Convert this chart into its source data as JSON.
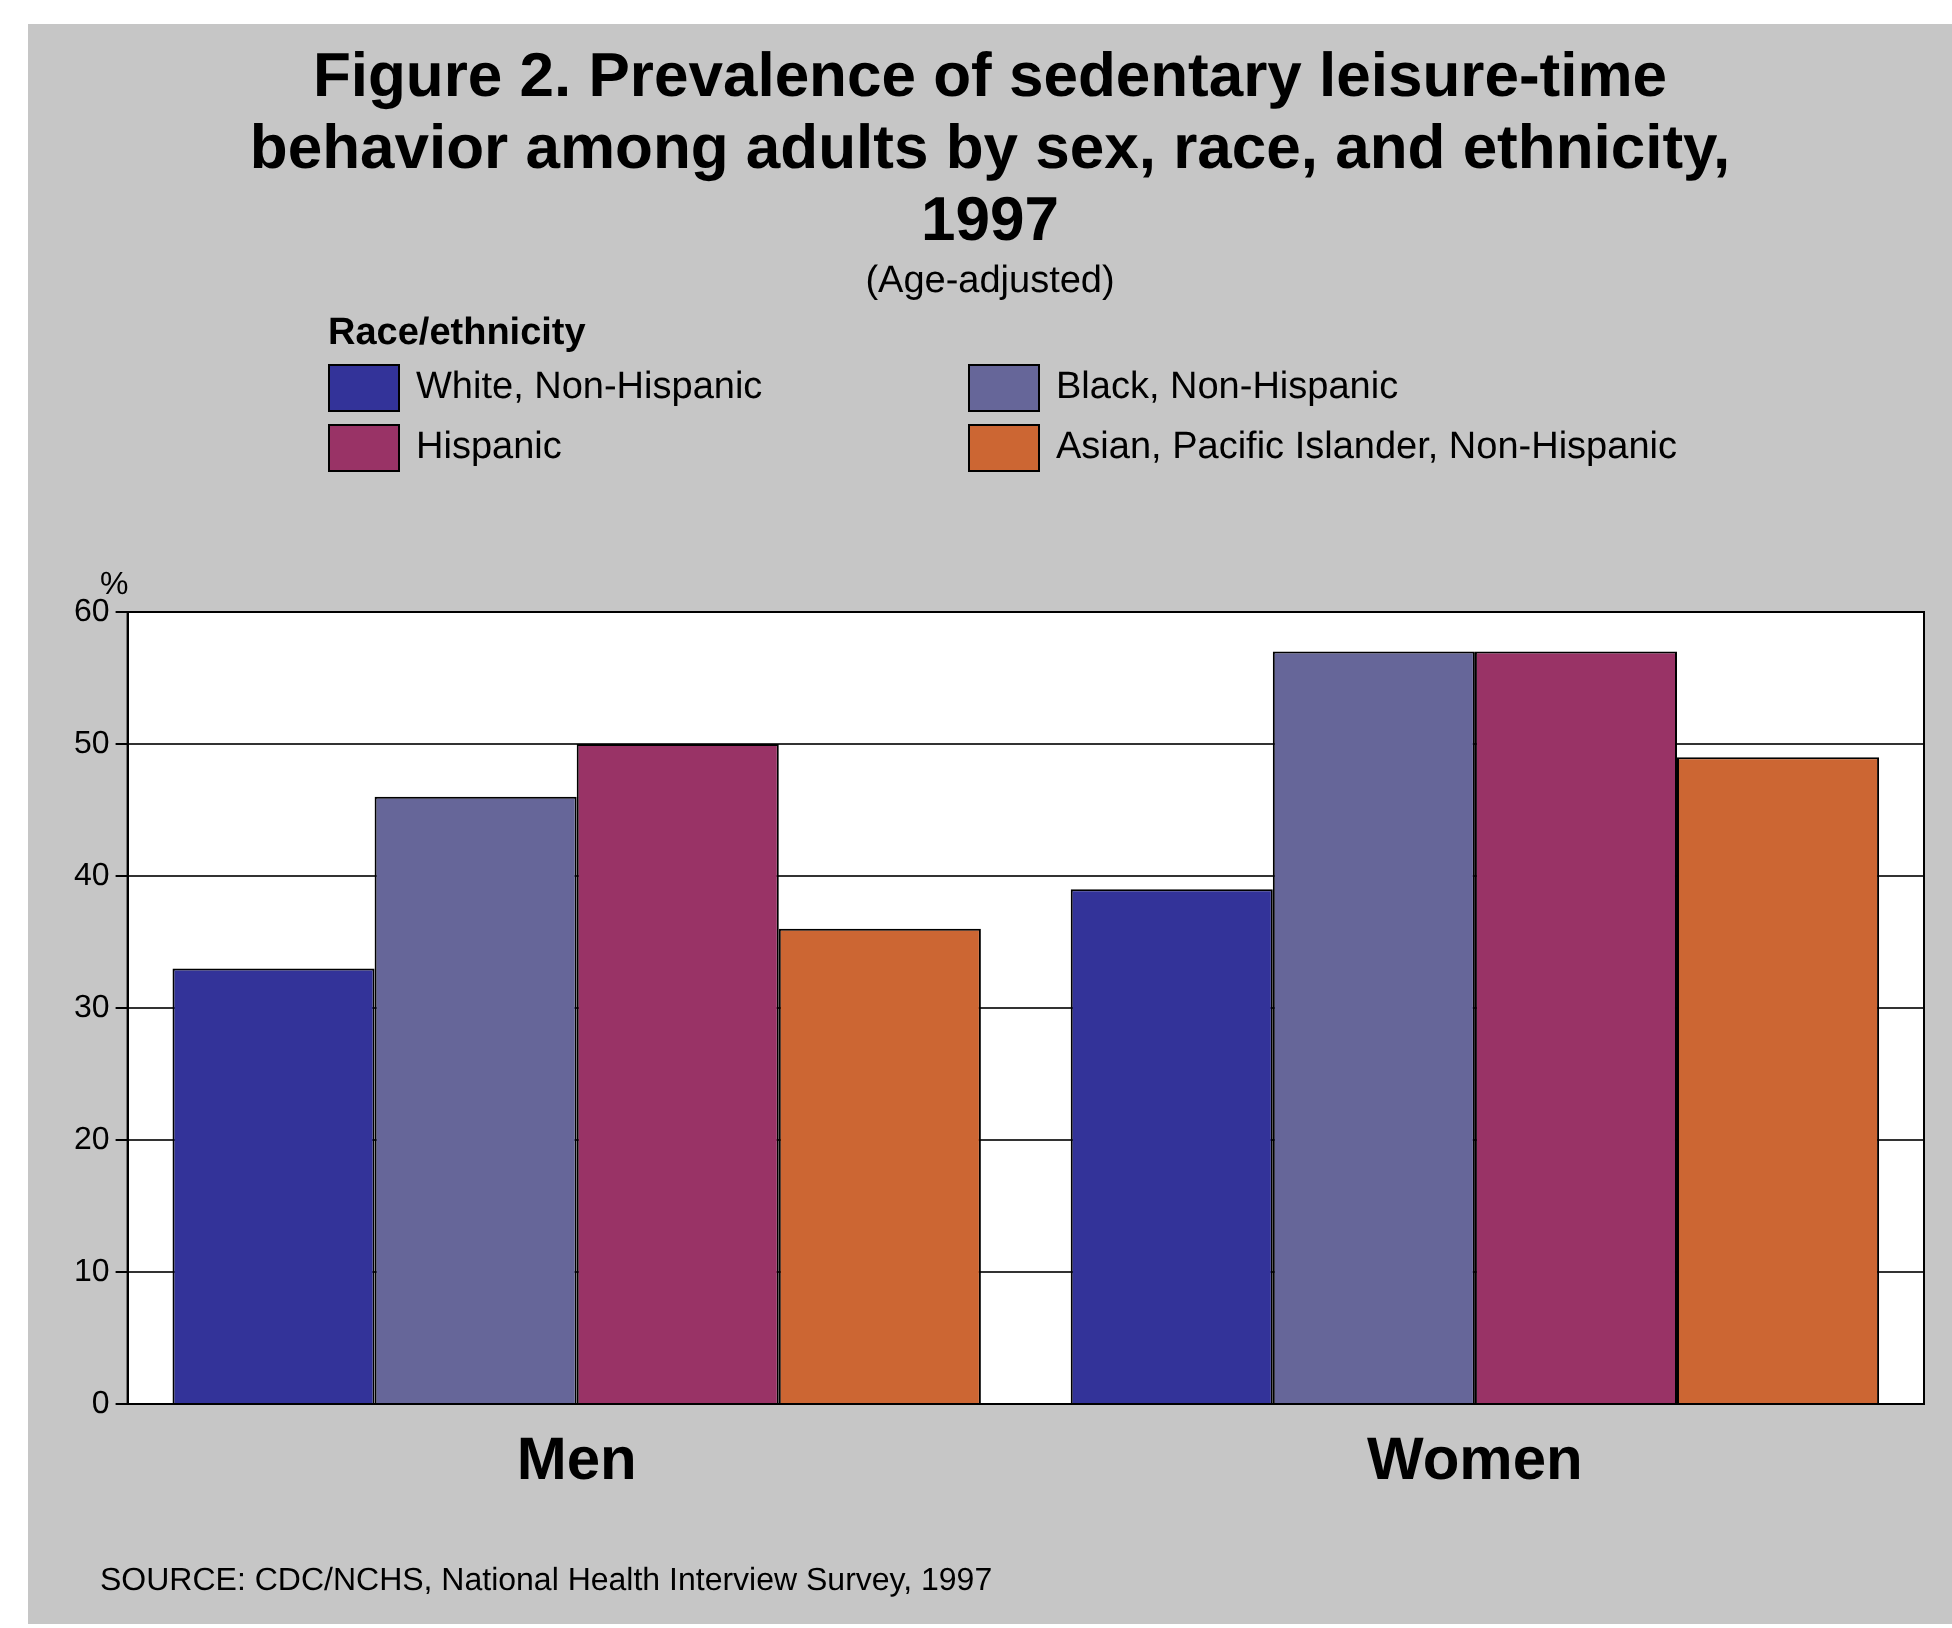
{
  "chart_data": {
    "type": "bar",
    "title": "Figure 2.  Prevalence of sedentary leisure-time behavior among adults by sex, race, and ethnicity, 1997",
    "subtitle": "(Age-adjusted)",
    "legend_title": "Race/ethnicity",
    "ylabel": "%",
    "categories": [
      "Men",
      "Women"
    ],
    "series": [
      {
        "name": "White, Non-Hispanic",
        "color": "#333399",
        "values": [
          33,
          39
        ]
      },
      {
        "name": "Black, Non-Hispanic",
        "color": "#666699",
        "values": [
          46,
          57
        ]
      },
      {
        "name": "Hispanic",
        "color": "#993366",
        "values": [
          50,
          57
        ]
      },
      {
        "name": "Asian, Pacific Islander, Non-Hispanic",
        "color": "#cc6633",
        "values": [
          36,
          49
        ]
      }
    ],
    "ylim": [
      0,
      60
    ],
    "yticks": [
      0,
      10,
      20,
      30,
      40,
      50,
      60
    ],
    "grid": "y",
    "legend": "top",
    "annotations": [
      "SOURCE: CDC/NCHS, National Health Interview Survey, 1997"
    ]
  }
}
